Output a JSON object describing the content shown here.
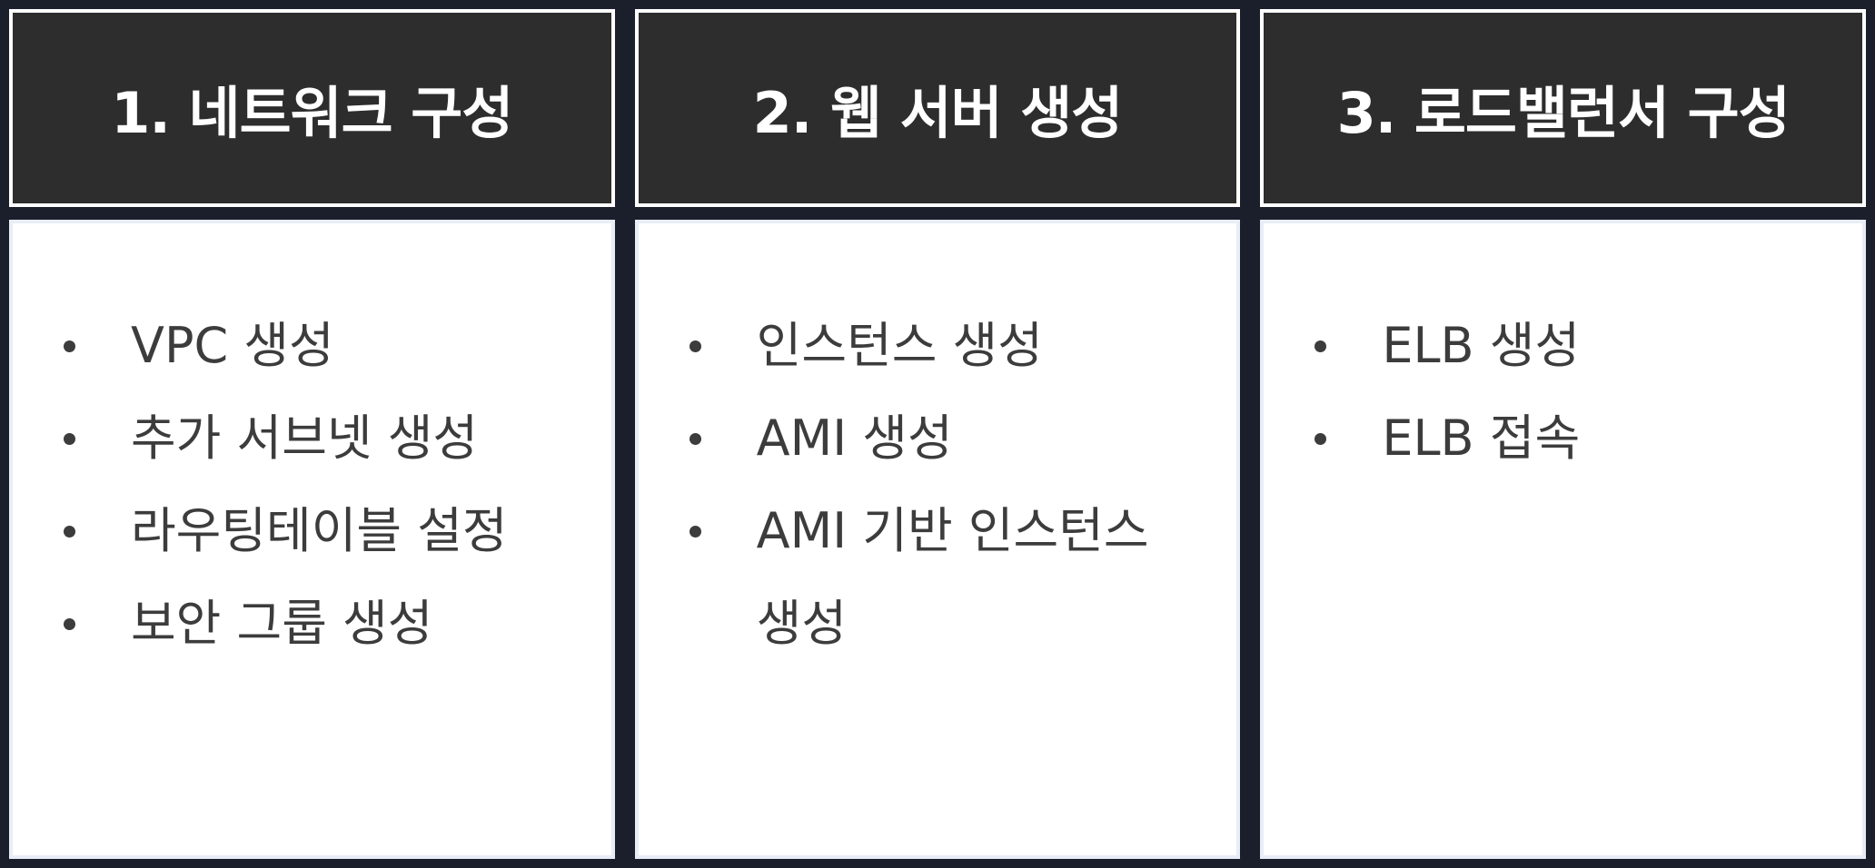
{
  "columns": [
    {
      "title": "1. 네트워크 구성",
      "items": [
        "VPC 생성",
        "추가 서브넷 생성",
        "라우팅테이블 설정",
        "보안 그룹 생성"
      ]
    },
    {
      "title": "2. 웹 서버 생성",
      "items": [
        "인스턴스 생성",
        "AMI 생성",
        "AMI 기반 인스턴스 생성"
      ]
    },
    {
      "title": "3. 로드밸런서 구성",
      "items": [
        "ELB 생성",
        "ELB 접속"
      ]
    }
  ],
  "colors": {
    "background": "#1b1f2c",
    "header_bg": "#2d2d2d",
    "header_text": "#ffffff",
    "panel_bg": "#ffffff",
    "item_text": "#3c3c3c"
  }
}
